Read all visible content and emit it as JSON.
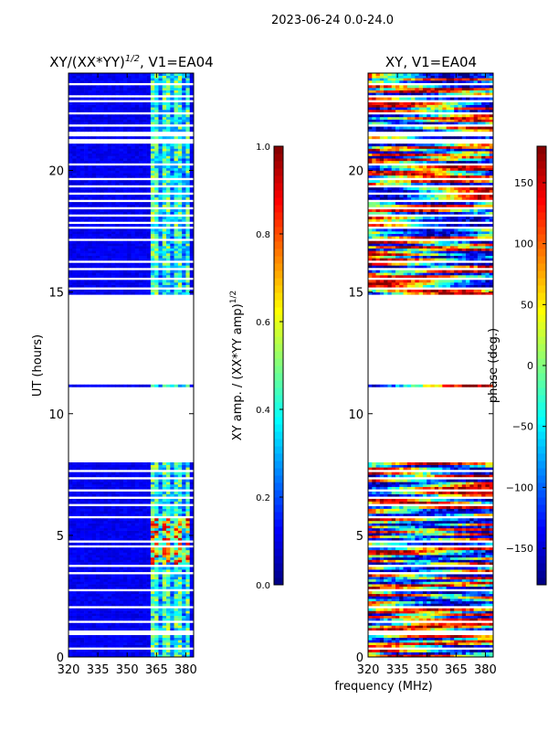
{
  "chart_data": {
    "type": "heatmap",
    "suptitle": "2023-06-24 0.0-24.0",
    "shared_xlabel": "frequency (MHz)",
    "panels": [
      {
        "title": "XY/(XX*YY)^1/2, V1=EA04",
        "title_main": "XY/(XX*YY)",
        "title_sup": "1/2",
        "title_rest": ", V1=EA04",
        "ylabel": "UT (hours)",
        "xlim": [
          320,
          384
        ],
        "ylim": [
          0,
          24
        ],
        "xticks": [
          "320",
          "335",
          "350",
          "365",
          "380"
        ],
        "yticks": [
          "0",
          "5",
          "10",
          "15",
          "20"
        ],
        "quantity": "amplitude",
        "clim": [
          0.0,
          1.0
        ],
        "colormap": "jet",
        "colorbar_label_main": "XY amp. / (XX*YY amp)",
        "colorbar_label_sup": "1/2",
        "colorbar_ticks": [
          "0.0",
          "0.2",
          "0.4",
          "0.6",
          "0.8",
          "1.0"
        ],
        "colorbar_tick_values": [
          0,
          0.2,
          0.4,
          0.6,
          0.8,
          1.0
        ],
        "typical_value_background": 0.08,
        "active_band_mhz": [
          362,
          382
        ],
        "typical_value_active_band": 0.4,
        "high_value_ut_range": [
          3.8,
          5.6
        ],
        "high_value": 0.8
      },
      {
        "title": "XY, V1=EA04",
        "ylabel": "",
        "xlim": [
          320,
          384
        ],
        "ylim": [
          0,
          24
        ],
        "xticks": [
          "320",
          "335",
          "350",
          "365",
          "380"
        ],
        "yticks": [
          "0",
          "5",
          "10",
          "15",
          "20"
        ],
        "quantity": "phase",
        "clim": [
          -180,
          180
        ],
        "colormap": "jet",
        "colorbar_label": "phase (deg.)",
        "colorbar_ticks": [
          "−150",
          "−100",
          "−50",
          "0",
          "50",
          "100",
          "150"
        ],
        "colorbar_tick_values": [
          -150,
          -100,
          -50,
          0,
          50,
          100,
          150
        ]
      }
    ],
    "data_ut_ranges": [
      [
        0.0,
        8.0
      ],
      [
        11.1,
        11.2
      ],
      [
        14.9,
        24.0
      ]
    ],
    "flagged_ut_rows": [
      0.3,
      0.55,
      0.9,
      1.0,
      1.4,
      2.0,
      2.15,
      2.7,
      3.4,
      3.55,
      3.7,
      4.5,
      4.7,
      5.7,
      6.2,
      6.5,
      6.8,
      7.05,
      7.3,
      7.6,
      15.1,
      15.5,
      15.9,
      16.05,
      16.2,
      17.1,
      17.6,
      17.8,
      18.1,
      18.4,
      18.7,
      19.0,
      19.3,
      19.6,
      20.2,
      21.1,
      21.2,
      21.4,
      21.5,
      21.65,
      21.8,
      22.3,
      22.8,
      23.0,
      23.5
    ]
  }
}
